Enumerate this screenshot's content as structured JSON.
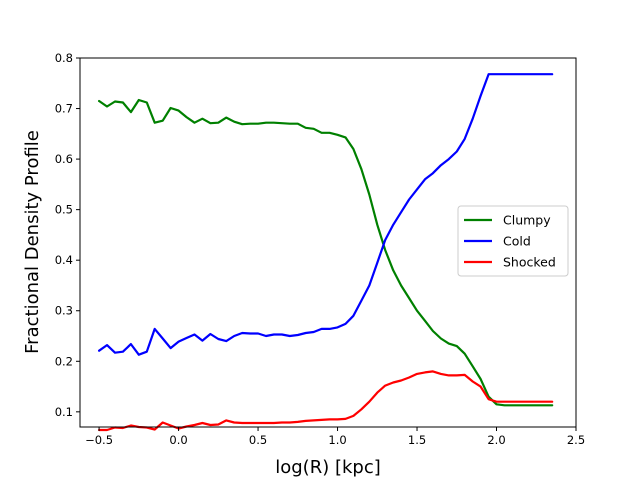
{
  "chart_data": {
    "type": "line",
    "title": "",
    "xlabel": "log(R) [kpc]",
    "ylabel": "Fractional Density Profile",
    "xlim": [
      -0.62,
      2.5
    ],
    "ylim": [
      0.07,
      0.8
    ],
    "xticks": [
      -0.5,
      0.0,
      0.5,
      1.0,
      1.5,
      2.0,
      2.5
    ],
    "xtick_labels": [
      "−0.5",
      "0.0",
      "0.5",
      "1.0",
      "1.5",
      "2.0",
      "2.5"
    ],
    "yticks": [
      0.1,
      0.2,
      0.3,
      0.4,
      0.5,
      0.6,
      0.7,
      0.8
    ],
    "ytick_labels": [
      "0.1",
      "0.2",
      "0.3",
      "0.4",
      "0.5",
      "0.6",
      "0.7",
      "0.8"
    ],
    "grid": false,
    "legend_position": "center-right",
    "x": [
      -0.5,
      -0.45,
      -0.4,
      -0.35,
      -0.3,
      -0.25,
      -0.2,
      -0.15,
      -0.1,
      -0.05,
      0.0,
      0.05,
      0.1,
      0.15,
      0.2,
      0.25,
      0.3,
      0.35,
      0.4,
      0.45,
      0.5,
      0.55,
      0.6,
      0.65,
      0.7,
      0.75,
      0.8,
      0.85,
      0.9,
      0.95,
      1.0,
      1.05,
      1.1,
      1.15,
      1.2,
      1.25,
      1.3,
      1.35,
      1.4,
      1.45,
      1.5,
      1.55,
      1.6,
      1.65,
      1.7,
      1.75,
      1.8,
      1.85,
      1.9,
      1.95,
      2.0,
      2.05,
      2.1,
      2.15,
      2.2,
      2.25,
      2.3,
      2.35
    ],
    "series": [
      {
        "name": "Clumpy",
        "color": "#008000",
        "values": [
          0.715,
          0.704,
          0.714,
          0.712,
          0.693,
          0.717,
          0.712,
          0.672,
          0.676,
          0.701,
          0.696,
          0.683,
          0.672,
          0.68,
          0.671,
          0.672,
          0.682,
          0.674,
          0.669,
          0.67,
          0.67,
          0.672,
          0.672,
          0.671,
          0.67,
          0.67,
          0.662,
          0.66,
          0.652,
          0.652,
          0.648,
          0.643,
          0.62,
          0.58,
          0.53,
          0.47,
          0.42,
          0.38,
          0.35,
          0.325,
          0.3,
          0.28,
          0.26,
          0.245,
          0.235,
          0.23,
          0.215,
          0.19,
          0.165,
          0.13,
          0.115,
          0.113,
          0.113,
          0.113,
          0.113,
          0.113,
          0.113,
          0.113
        ]
      },
      {
        "name": "Cold",
        "color": "#0000ff",
        "values": [
          0.221,
          0.232,
          0.217,
          0.219,
          0.234,
          0.213,
          0.219,
          0.264,
          0.245,
          0.226,
          0.239,
          0.246,
          0.253,
          0.241,
          0.254,
          0.244,
          0.24,
          0.25,
          0.256,
          0.255,
          0.255,
          0.25,
          0.253,
          0.253,
          0.25,
          0.252,
          0.256,
          0.258,
          0.264,
          0.264,
          0.267,
          0.274,
          0.29,
          0.32,
          0.35,
          0.395,
          0.44,
          0.47,
          0.495,
          0.52,
          0.54,
          0.56,
          0.572,
          0.588,
          0.6,
          0.615,
          0.64,
          0.68,
          0.725,
          0.768,
          0.768,
          0.768,
          0.768,
          0.768,
          0.768,
          0.768,
          0.768,
          0.768
        ]
      },
      {
        "name": "Shocked",
        "color": "#ff0000",
        "values": [
          0.064,
          0.064,
          0.069,
          0.068,
          0.073,
          0.07,
          0.069,
          0.065,
          0.079,
          0.073,
          0.067,
          0.071,
          0.074,
          0.078,
          0.074,
          0.075,
          0.083,
          0.079,
          0.078,
          0.078,
          0.078,
          0.078,
          0.078,
          0.079,
          0.079,
          0.08,
          0.082,
          0.083,
          0.084,
          0.085,
          0.085,
          0.086,
          0.092,
          0.105,
          0.12,
          0.138,
          0.152,
          0.158,
          0.162,
          0.168,
          0.175,
          0.178,
          0.18,
          0.175,
          0.172,
          0.172,
          0.173,
          0.16,
          0.15,
          0.125,
          0.12,
          0.12,
          0.12,
          0.12,
          0.12,
          0.12,
          0.12,
          0.12
        ]
      }
    ]
  }
}
